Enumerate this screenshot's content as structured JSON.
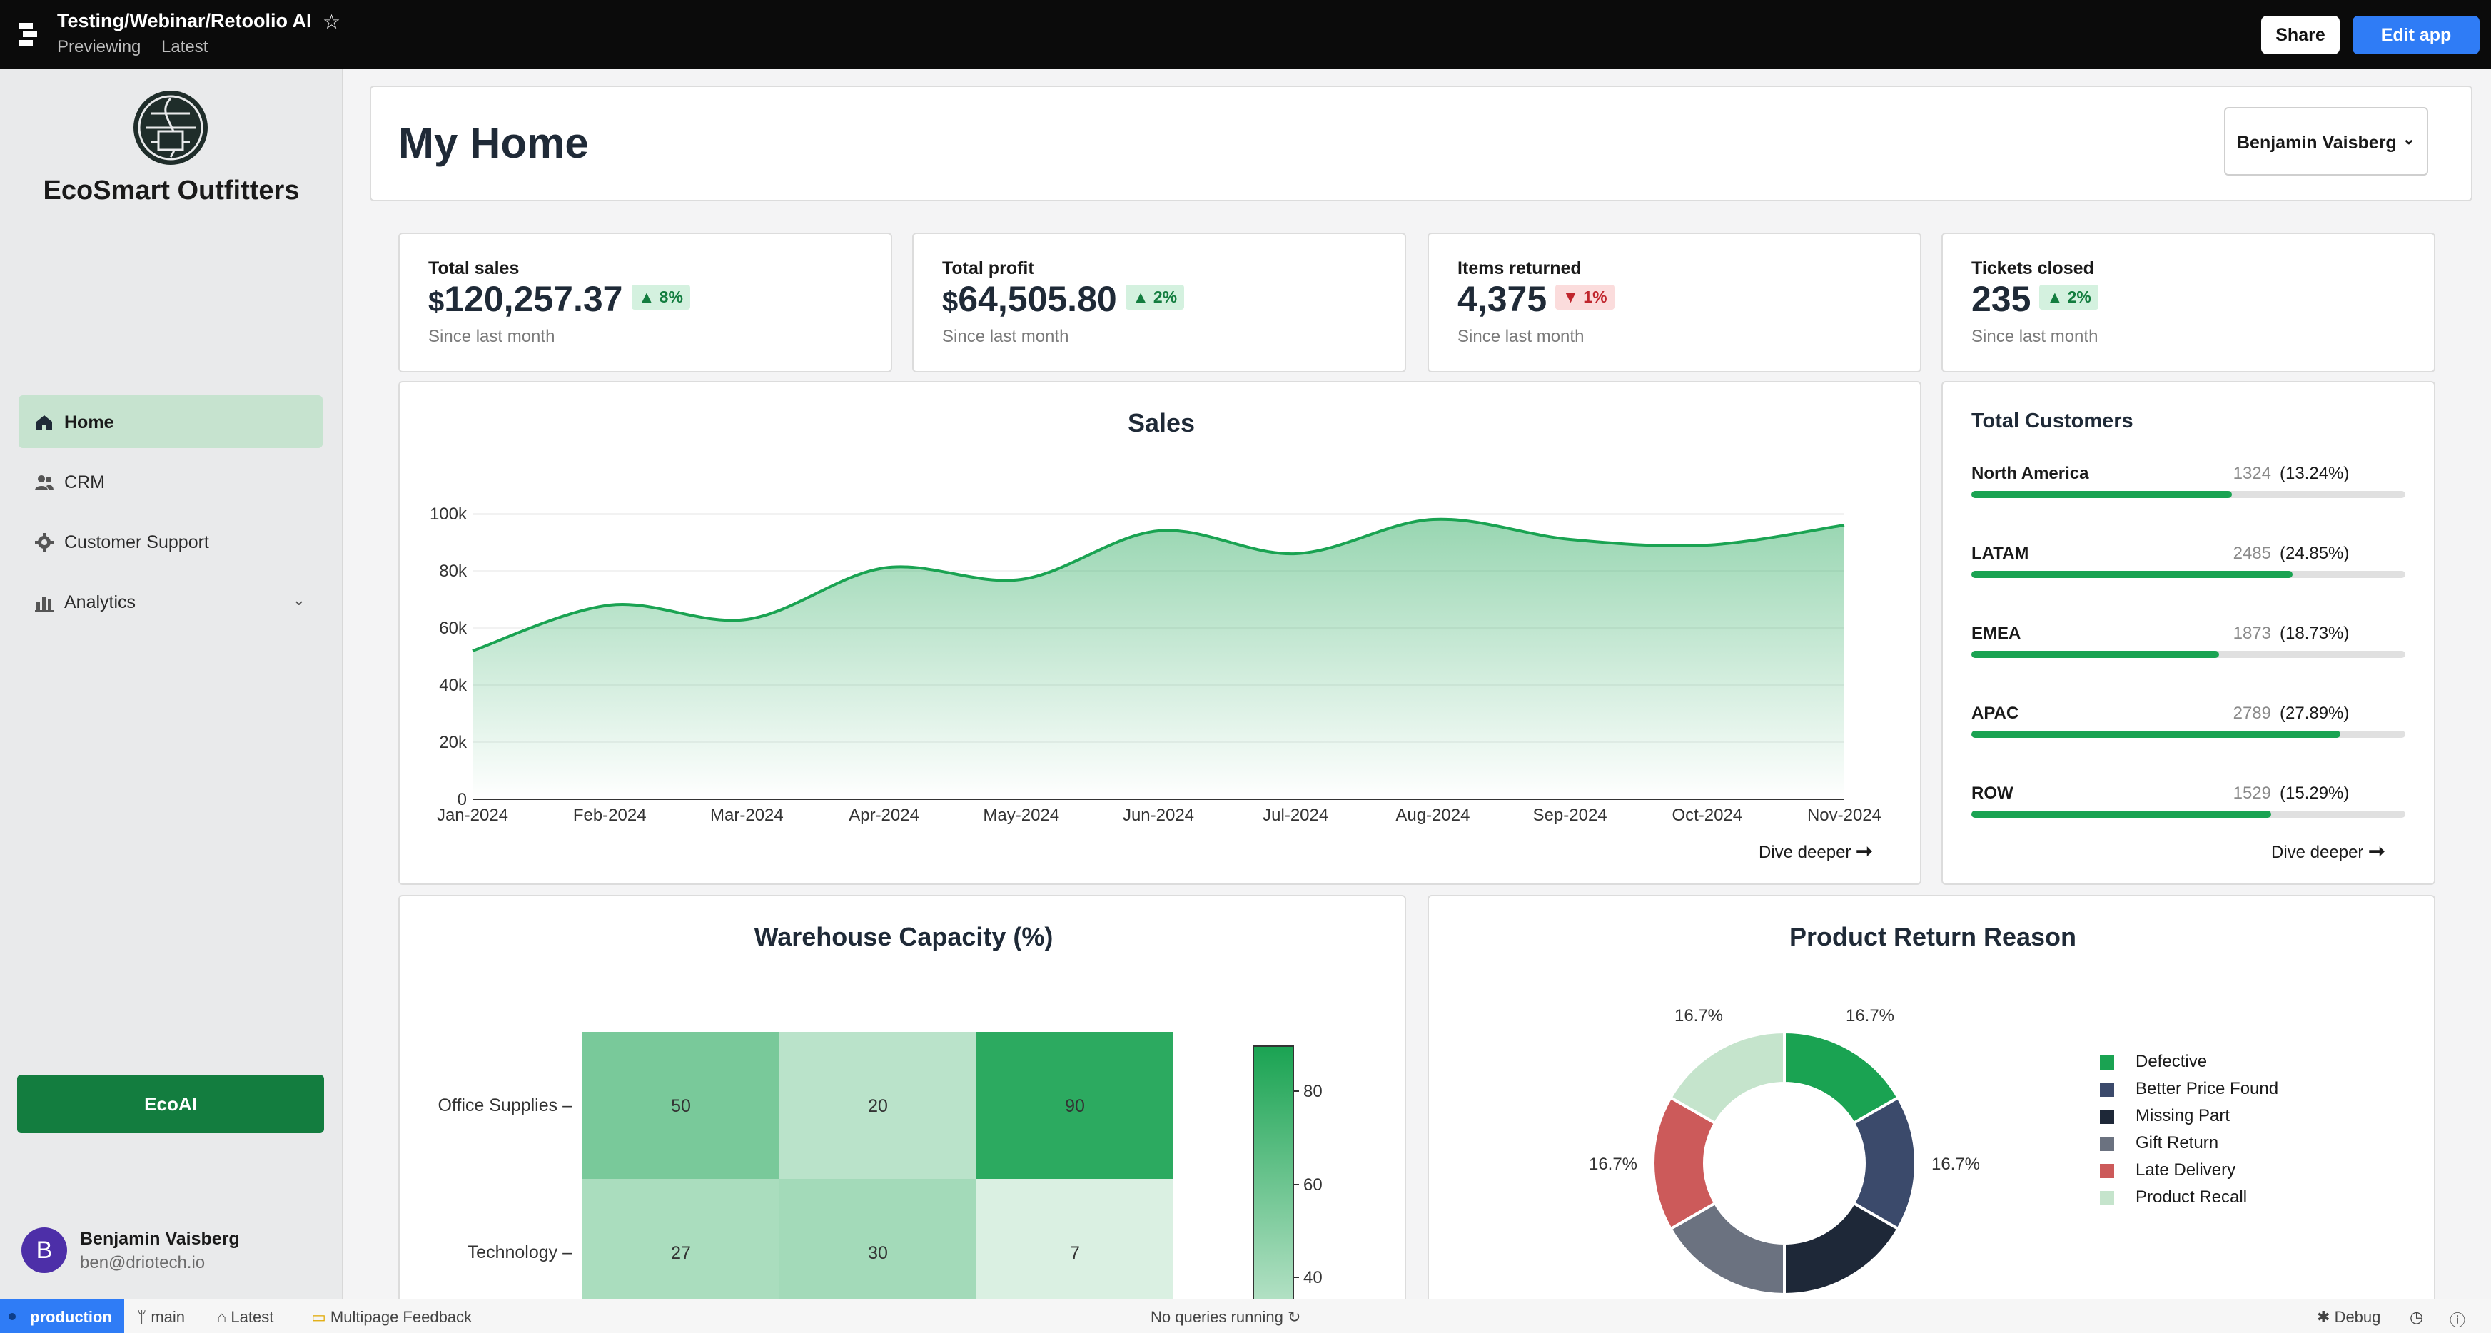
{
  "topbar": {
    "app_title": "Testing/Webinar/Retoolio AI",
    "mode": "Previewing",
    "version": "Latest",
    "share_label": "Share",
    "edit_label": "Edit app"
  },
  "sidebar": {
    "brand": "EcoSmart Outfitters",
    "items": [
      {
        "label": "Home",
        "icon": "home-icon",
        "active": true
      },
      {
        "label": "CRM",
        "icon": "users-icon"
      },
      {
        "label": "Customer Support",
        "icon": "gear-icon"
      },
      {
        "label": "Analytics",
        "icon": "bar-chart-icon",
        "expandable": true
      }
    ],
    "ecoai_label": "EcoAI",
    "user": {
      "initial": "B",
      "name": "Benjamin Vaisberg",
      "email": "ben@driotech.io"
    }
  },
  "header": {
    "title": "My Home",
    "user_select": "Benjamin Vaisberg"
  },
  "stats": [
    {
      "label": "Total sales",
      "currency": "$",
      "value": "120,257.37",
      "change": "8%",
      "direction": "up",
      "since": "Since last month"
    },
    {
      "label": "Total profit",
      "currency": "$",
      "value": "64,505.80",
      "change": "2%",
      "direction": "up",
      "since": "Since last month"
    },
    {
      "label": "Items returned",
      "currency": "",
      "value": "4,375",
      "change": "1%",
      "direction": "down",
      "since": "Since last month"
    },
    {
      "label": "Tickets closed",
      "currency": "",
      "value": "235",
      "change": "2%",
      "direction": "up",
      "since": "Since last month"
    }
  ],
  "sales": {
    "title": "Sales",
    "dive_label": "Dive deeper"
  },
  "customers": {
    "title": "Total Customers",
    "regions": [
      {
        "name": "North America",
        "count": "1324",
        "pct": "(13.24%)",
        "fill": 0.6
      },
      {
        "name": "LATAM",
        "count": "2485",
        "pct": "(24.85%)",
        "fill": 0.74
      },
      {
        "name": "EMEA",
        "count": "1873",
        "pct": "(18.73%)",
        "fill": 0.57
      },
      {
        "name": "APAC",
        "count": "2789",
        "pct": "(27.89%)",
        "fill": 0.85
      },
      {
        "name": "ROW",
        "count": "1529",
        "pct": "(15.29%)",
        "fill": 0.69
      }
    ],
    "dive_label": "Dive deeper"
  },
  "warehouse": {
    "title": "Warehouse Capacity (%)"
  },
  "returns": {
    "title": "Product Return Reason"
  },
  "statusbar": {
    "env": "production",
    "branch": "main",
    "version": "Latest",
    "feedback": "Multipage Feedback",
    "queries": "No queries running",
    "debug": "Debug"
  },
  "colors": {
    "accent": "#2f7cf6",
    "brand_green": "#137d3f",
    "chart_green": "#1aa352"
  },
  "chart_data": [
    {
      "type": "area",
      "title": "Sales",
      "categories": [
        "Jan-2024",
        "Feb-2024",
        "Mar-2024",
        "Apr-2024",
        "May-2024",
        "Jun-2024",
        "Jul-2024",
        "Aug-2024",
        "Sep-2024",
        "Oct-2024",
        "Nov-2024"
      ],
      "values": [
        52000,
        68000,
        63000,
        81000,
        77000,
        94000,
        86000,
        98000,
        91000,
        89000,
        96000
      ],
      "ylim": [
        0,
        100000
      ],
      "yticks": [
        "0",
        "20k",
        "40k",
        "60k",
        "80k",
        "100k"
      ],
      "grid": true,
      "color": "#1aa352"
    },
    {
      "type": "heatmap",
      "title": "Warehouse Capacity (%)",
      "rows": [
        "Office Supplies",
        "Technology"
      ],
      "columns": [
        "",
        "",
        ""
      ],
      "values": [
        [
          50,
          20,
          90
        ],
        [
          27,
          30,
          7
        ]
      ],
      "colorbar_ticks": [
        80,
        60,
        40
      ],
      "color": "#1aa352"
    },
    {
      "type": "pie",
      "title": "Product Return Reason",
      "donut": true,
      "labels": [
        "Defective",
        "Better Price Found",
        "Missing Part",
        "Gift Return",
        "Late Delivery",
        "Product Recall"
      ],
      "values": [
        16.7,
        16.7,
        16.7,
        16.7,
        16.7,
        16.7
      ],
      "value_labels": [
        "16.7%",
        "16.7%",
        "16.7%",
        "16.7%",
        "16.7%",
        "16.7%"
      ],
      "colors": [
        "#1aa352",
        "#3b4a6b",
        "#1e2838",
        "#6b7280",
        "#cc5a5a",
        "#c5e4cc"
      ],
      "legend": "right"
    }
  ]
}
